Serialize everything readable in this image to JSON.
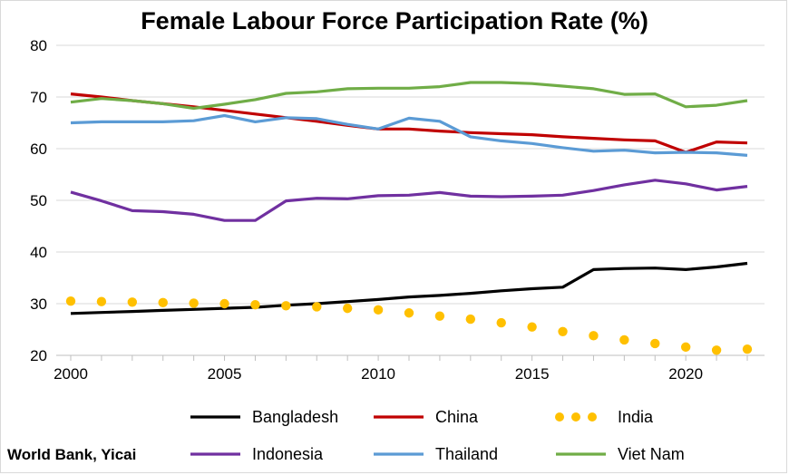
{
  "chart_data": {
    "type": "line",
    "title": "Female Labour Force Participation Rate (%)",
    "source": "World Bank, Yicai",
    "xlim": [
      2000,
      2022
    ],
    "ylim": [
      20,
      80
    ],
    "x_ticks": [
      2000,
      2005,
      2010,
      2015,
      2020
    ],
    "y_ticks": [
      20,
      30,
      40,
      50,
      60,
      70,
      80
    ],
    "grid": "horizontal",
    "legend_position": "bottom",
    "x": [
      2000,
      2001,
      2002,
      2003,
      2004,
      2005,
      2006,
      2007,
      2008,
      2009,
      2010,
      2011,
      2012,
      2013,
      2014,
      2015,
      2016,
      2017,
      2018,
      2019,
      2020,
      2021,
      2022
    ],
    "series": [
      {
        "name": "Bangladesh",
        "color": "#000000",
        "style": "solid",
        "values": [
          28.1,
          28.3,
          28.5,
          28.7,
          28.9,
          29.1,
          29.3,
          29.7,
          30.0,
          30.4,
          30.8,
          31.3,
          31.6,
          32.0,
          32.5,
          32.9,
          33.2,
          36.6,
          36.8,
          36.9,
          36.6,
          37.1,
          37.8
        ]
      },
      {
        "name": "China",
        "color": "#c00000",
        "style": "solid",
        "values": [
          70.6,
          70.0,
          69.3,
          68.7,
          68.1,
          67.4,
          66.7,
          66.0,
          65.3,
          64.5,
          63.8,
          63.8,
          63.4,
          63.1,
          62.9,
          62.7,
          62.3,
          62.0,
          61.7,
          61.5,
          59.3,
          61.3,
          61.1
        ]
      },
      {
        "name": "India",
        "color": "#ffc000",
        "style": "dotted",
        "values": [
          30.5,
          30.4,
          30.3,
          30.2,
          30.1,
          30.0,
          29.8,
          29.6,
          29.4,
          29.1,
          28.8,
          28.2,
          27.6,
          27.0,
          26.3,
          25.5,
          24.6,
          23.8,
          23.0,
          22.3,
          21.6,
          21.0,
          21.2
        ]
      },
      {
        "name": "Indonesia",
        "color": "#7030a0",
        "style": "solid",
        "values": [
          51.6,
          49.9,
          48.0,
          47.8,
          47.3,
          46.1,
          46.1,
          49.9,
          50.4,
          50.3,
          50.9,
          51.0,
          51.5,
          50.8,
          50.7,
          50.8,
          51.0,
          51.9,
          53.0,
          53.9,
          53.2,
          52.0,
          52.7
        ]
      },
      {
        "name": "Thailand",
        "color": "#5b9bd5",
        "style": "solid",
        "values": [
          65.0,
          65.2,
          65.2,
          65.2,
          65.4,
          66.4,
          65.2,
          66.0,
          65.8,
          64.7,
          63.8,
          65.9,
          65.3,
          62.3,
          61.5,
          61.0,
          60.2,
          59.5,
          59.7,
          59.2,
          59.3,
          59.2,
          58.7
        ]
      },
      {
        "name": "Viet Nam",
        "color": "#70ad47",
        "style": "solid",
        "values": [
          69.0,
          69.7,
          69.3,
          68.7,
          67.8,
          68.6,
          69.5,
          70.7,
          71.0,
          71.6,
          71.7,
          71.7,
          72.0,
          72.8,
          72.8,
          72.6,
          72.1,
          71.6,
          70.5,
          70.6,
          68.1,
          68.4,
          69.3
        ]
      }
    ],
    "legend_extra_points": {
      "India": [
        [
          2020,
          22.8
        ],
        [
          2021,
          22.9
        ],
        [
          2022,
          23.5
        ]
      ]
    }
  }
}
